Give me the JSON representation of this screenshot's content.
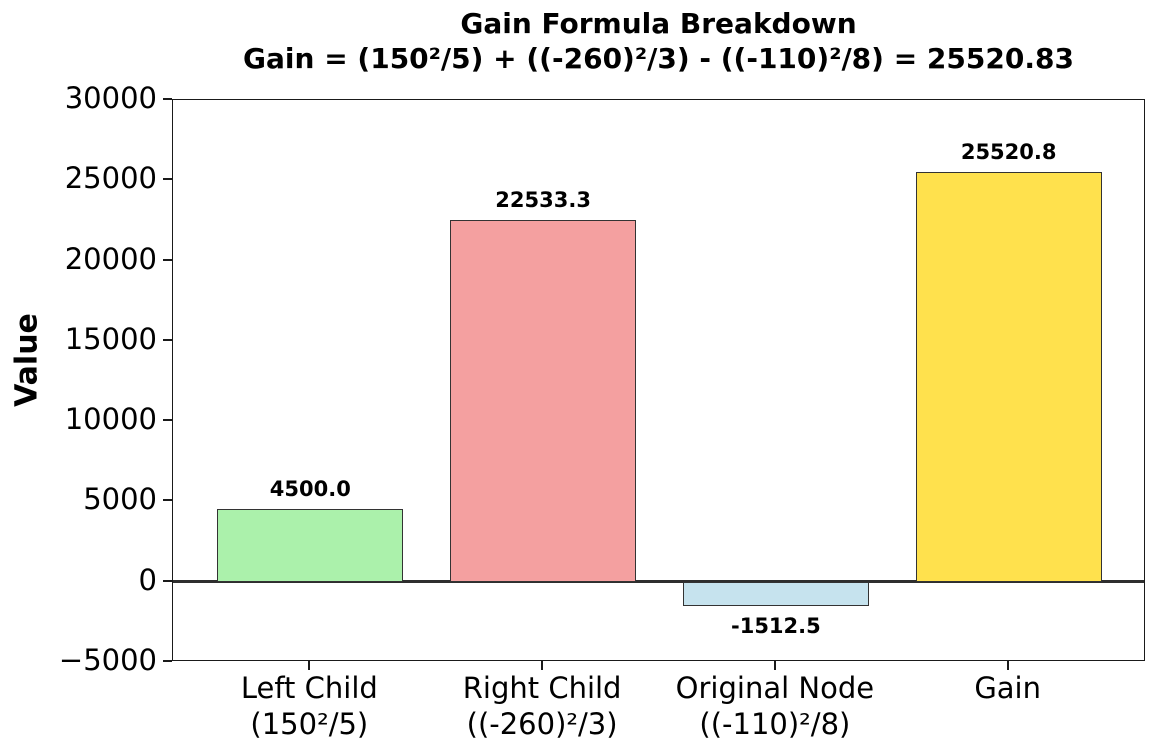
{
  "title": {
    "line1": "Gain Formula Breakdown",
    "line2": "Gain = (150²/5) + ((-260)²/3) - ((-110)²/8) = 25520.83"
  },
  "chart_data": {
    "type": "bar",
    "title": "Gain Formula Breakdown",
    "subtitle": "Gain = (150²/5) + ((-260)²/3) - ((-110)²/8) = 25520.83",
    "categories": [
      [
        "Left Child",
        "(150²/5)"
      ],
      [
        "Right Child",
        "((-260)²/3)"
      ],
      [
        "Original Node",
        "((-110)²/8)"
      ],
      [
        "Gain"
      ]
    ],
    "values": [
      4500.0,
      22533.3,
      -1512.5,
      25520.8
    ],
    "bar_labels": [
      "4500.0",
      "22533.3",
      "-1512.5",
      "25520.8"
    ],
    "bar_colors": [
      "#ABF1AB",
      "#F4A0A0",
      "#C6E3EE",
      "#FFE14D"
    ],
    "bar_edge_color": "#333333",
    "xlabel": "",
    "ylabel": "Value",
    "ylim": [
      -5000,
      30000
    ],
    "yticks": [
      30000,
      25000,
      20000,
      15000,
      10000,
      5000,
      0,
      -5000
    ],
    "ytick_labels": [
      "30000",
      "25000",
      "20000",
      "15000",
      "10000",
      "5000",
      "0",
      "−5000"
    ],
    "grid": false,
    "zero_line": true,
    "legend": null
  }
}
